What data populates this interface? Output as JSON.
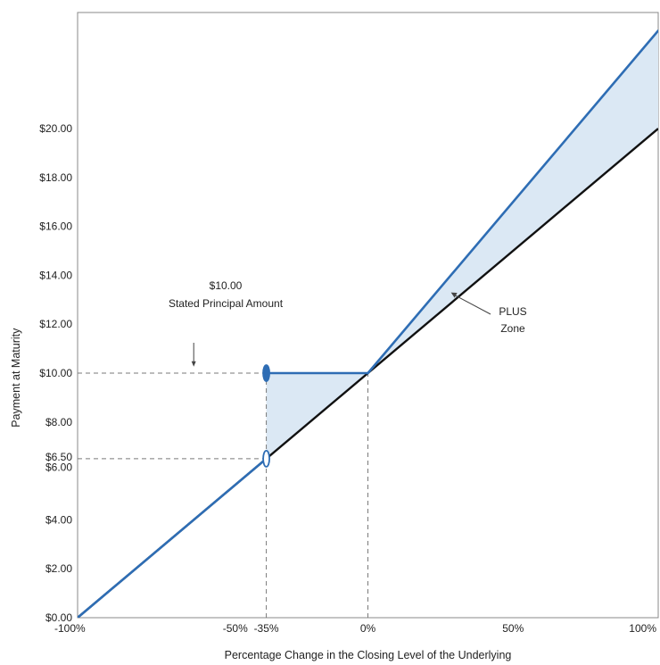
{
  "chart_data": {
    "type": "line",
    "title": "",
    "xlabel": "Percentage Change in the Closing Level of the Underlying",
    "ylabel": "Payment at Maturity",
    "xlim": [
      -100,
      100
    ],
    "ylim": [
      0,
      24
    ],
    "x_tick_values": [
      -100,
      -50,
      -35,
      0,
      50,
      100
    ],
    "x_tick_labels": [
      "-100%",
      "-50%",
      "-35%",
      "0%",
      "50%",
      "100%"
    ],
    "y_tick_values": [
      0,
      2,
      4,
      6,
      6.5,
      8,
      10,
      12,
      14,
      16,
      18,
      20
    ],
    "y_tick_labels": [
      "$0.00",
      "$2.00",
      "$4.00",
      "$6.00",
      "$6.50",
      "$8.00",
      "$10.00",
      "$12.00",
      "$14.00",
      "$16.00",
      "$18.00",
      "$20.00"
    ],
    "grid": false,
    "series": [
      {
        "color": "#111111",
        "x": [
          -100,
          100
        ],
        "y": [
          0,
          20
        ]
      },
      {
        "color": "#2e6db4",
        "x": [
          -100,
          -35,
          -35,
          0,
          100
        ],
        "y": [
          0,
          6.5,
          10,
          10,
          24
        ]
      }
    ],
    "shaded_regions": [
      {
        "color": "#dbe8f4",
        "x": [
          -35,
          0
        ],
        "between": "blue-and-black"
      },
      {
        "color": "#dbe8f4",
        "x": [
          0,
          100
        ],
        "between": "blue-and-black"
      }
    ],
    "markers": [
      {
        "x": -35,
        "y": 10,
        "style": "filled",
        "color": "#2e6db4"
      },
      {
        "x": -35,
        "y": 6.5,
        "style": "open",
        "color": "#2e6db4"
      }
    ],
    "reference_lines": [
      {
        "from": [
          -100,
          10
        ],
        "to": [
          -35,
          10
        ]
      },
      {
        "from": [
          -100,
          6.5
        ],
        "to": [
          -35,
          6.5
        ]
      },
      {
        "from": [
          -35,
          0
        ],
        "to": [
          -35,
          10
        ]
      },
      {
        "from": [
          0,
          0
        ],
        "to": [
          0,
          10
        ]
      }
    ],
    "annotations": [
      {
        "lines": [
          "$10.00",
          "Stated Principal Amount"
        ],
        "arrow_to": [
          -60,
          10.3
        ]
      },
      {
        "lines": [
          "PLUS",
          "Zone"
        ],
        "arrow_to": [
          28,
          13.3
        ]
      }
    ]
  }
}
